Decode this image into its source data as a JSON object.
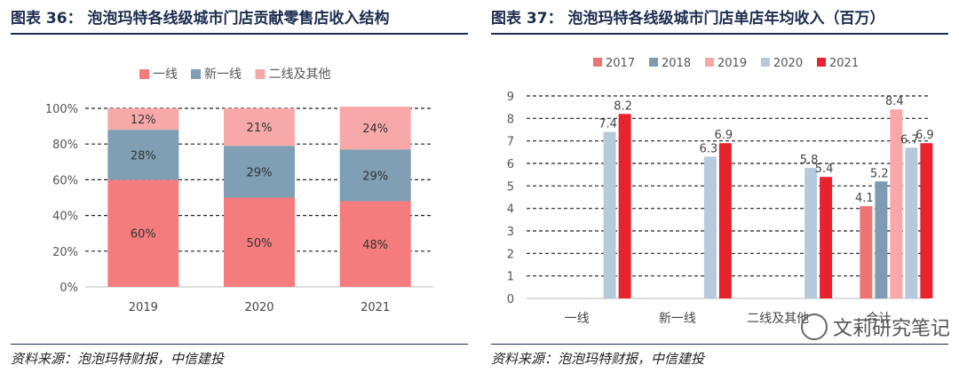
{
  "left": {
    "title": "图表 36：  泡泡玛特各线级城市门店贡献零售店收入结构",
    "source": "资料来源：泡泡玛特财报，中信建投"
  },
  "right": {
    "title": "图表 37：  泡泡玛特各线级城市门店单店年均收入（百万）",
    "source": "资料来源：泡泡玛特财报，中信建投"
  },
  "watermark": {
    "text": "文莉研究笔记",
    "icon": "wechat-icon"
  },
  "colors": {
    "accent": "#1d2d4f"
  },
  "chart_data": [
    {
      "type": "bar",
      "stacked": true,
      "categories": [
        "2019",
        "2020",
        "2021"
      ],
      "series": [
        {
          "name": "一线",
          "values": [
            60,
            50,
            48
          ],
          "labels": [
            "60%",
            "50%",
            "48%"
          ],
          "color": "#f47c7c"
        },
        {
          "name": "新一线",
          "values": [
            28,
            29,
            29
          ],
          "labels": [
            "28%",
            "29%",
            "29%"
          ],
          "color": "#7f9fb5"
        },
        {
          "name": "二线及其他",
          "values": [
            12,
            21,
            24
          ],
          "labels": [
            "12%",
            "21%",
            "24%"
          ],
          "color": "#f7a9a9"
        }
      ],
      "yticks": [
        "0%",
        "20%",
        "40%",
        "60%",
        "80%",
        "100%"
      ],
      "ylim": [
        0,
        100
      ],
      "grid": true,
      "legend": "top"
    },
    {
      "type": "bar",
      "categories": [
        "一线",
        "新一线",
        "二线及其他",
        "合计"
      ],
      "series": [
        {
          "name": "2017",
          "values": [
            null,
            null,
            null,
            4.1
          ],
          "color": "#ee7474"
        },
        {
          "name": "2018",
          "values": [
            null,
            null,
            null,
            5.2
          ],
          "color": "#7d9cb3"
        },
        {
          "name": "2019",
          "values": [
            null,
            null,
            null,
            8.4
          ],
          "color": "#f8a8a8"
        },
        {
          "name": "2020",
          "values": [
            7.4,
            6.3,
            5.8,
            6.7
          ],
          "color": "#b7cadb"
        },
        {
          "name": "2021",
          "values": [
            8.2,
            6.9,
            5.4,
            6.9
          ],
          "color": "#e8232e"
        }
      ],
      "yticks": [
        "0",
        "1",
        "2",
        "3",
        "4",
        "5",
        "6",
        "7",
        "8",
        "9"
      ],
      "ylim": [
        0,
        9
      ],
      "grid": true,
      "legend": "top"
    }
  ]
}
